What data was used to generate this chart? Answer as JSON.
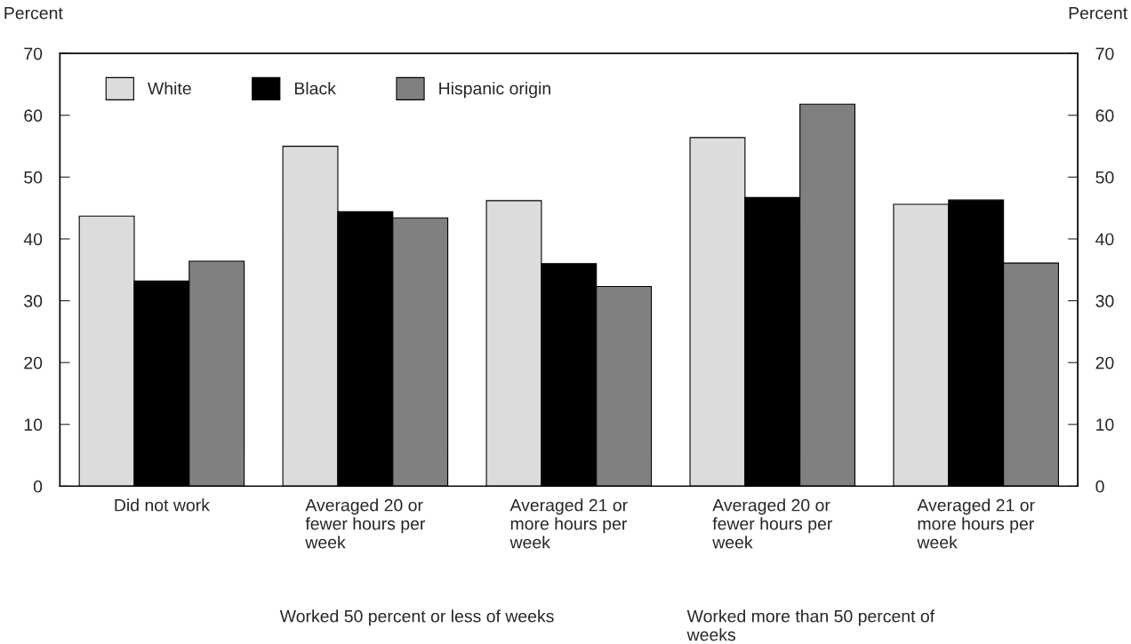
{
  "chart_data": {
    "type": "bar",
    "ylabel": "Percent",
    "y2label": "Percent",
    "categories": [
      "Did not work",
      "Averaged 20 or\nfewer hours per\nweek",
      "Averaged 21 or\nmore hours per\nweek",
      "Averaged 20 or\nfewer hours per\nweek",
      "Averaged 21 or\nmore hours per\nweek"
    ],
    "series": [
      {
        "name": "White",
        "color": "#dcdcdc",
        "values": [
          43.7,
          55.0,
          46.2,
          56.4,
          45.6
        ]
      },
      {
        "name": "Black",
        "color": "#000000",
        "values": [
          33.2,
          44.4,
          36.0,
          46.7,
          46.3
        ]
      },
      {
        "name": "Hispanic origin",
        "color": "#808080",
        "values": [
          36.4,
          43.4,
          32.3,
          61.8,
          36.1
        ]
      }
    ],
    "ylim": [
      0,
      70
    ],
    "yticks": [
      0,
      10,
      20,
      30,
      40,
      50,
      60,
      70
    ],
    "y2lim": [
      0,
      70
    ],
    "y2ticks": [
      0,
      10,
      20,
      30,
      40,
      50,
      60,
      70
    ],
    "annotations": [
      "Worked 50 percent or less of weeks",
      "Worked more than 50 percent of\nweeks"
    ],
    "legend": "top left",
    "grid": false
  }
}
